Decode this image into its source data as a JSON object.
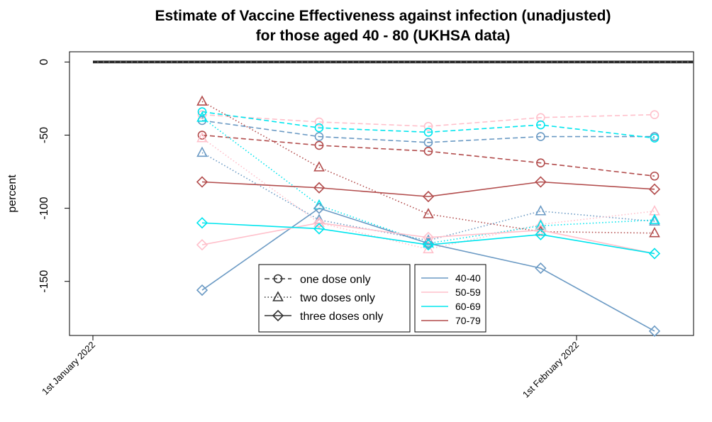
{
  "chart_data": {
    "type": "line",
    "title": "Estimate of Vaccine Effectiveness against infection (unadjusted)",
    "subtitle": "for those aged 40 - 80 (UKHSA data)",
    "ylabel": "percent",
    "xlabel": "",
    "ylim": [
      -187,
      7
    ],
    "yticks": [
      0,
      -50,
      -100,
      -150
    ],
    "x_tick_labels": [
      "1st January 2022",
      "1st February 2022"
    ],
    "x_tick_days": [
      0,
      31
    ],
    "xlim_days": [
      -1.5,
      38.5
    ],
    "x_days": [
      7,
      14.5,
      21.5,
      28.7,
      36
    ],
    "reference_line": {
      "y": 0,
      "x_start_day": 0,
      "x_end_day": 38.5
    },
    "dose_legend": [
      "one dose only",
      "two doses only",
      "three doses only"
    ],
    "age_legend": [
      "40-40",
      "50-59",
      "60-69",
      "70-79"
    ],
    "colors": {
      "40-40": "#6b9ac4",
      "50-59": "#ffc0cb",
      "60-69": "#00e5ee",
      "70-79": "#b24c4c"
    },
    "series": [
      {
        "age": "40-40",
        "dose": "one dose only",
        "values": [
          -40,
          -51,
          -55,
          -51,
          -51
        ]
      },
      {
        "age": "50-59",
        "dose": "one dose only",
        "values": [
          -36,
          -41,
          -44,
          -38,
          -36
        ]
      },
      {
        "age": "60-69",
        "dose": "one dose only",
        "values": [
          -34,
          -45,
          -48,
          -43,
          -52
        ]
      },
      {
        "age": "70-79",
        "dose": "one dose only",
        "values": [
          -50,
          -57,
          -61,
          -69,
          -78
        ]
      },
      {
        "age": "40-40",
        "dose": "two doses only",
        "values": [
          -62,
          -108,
          -122,
          -102,
          -109
        ]
      },
      {
        "age": "50-59",
        "dose": "two doses only",
        "values": [
          -52,
          -110,
          -128,
          -111,
          -102
        ]
      },
      {
        "age": "60-69",
        "dose": "two doses only",
        "values": [
          -38,
          -98,
          -124,
          -112,
          -108
        ]
      },
      {
        "age": "70-79",
        "dose": "two doses only",
        "values": [
          -27,
          -72,
          -104,
          -116,
          -117
        ]
      },
      {
        "age": "40-40",
        "dose": "three doses only",
        "values": [
          -156,
          -100,
          -124,
          -141,
          -184
        ]
      },
      {
        "age": "50-59",
        "dose": "three doses only",
        "values": [
          -125,
          -110,
          -120,
          -115,
          -131
        ]
      },
      {
        "age": "60-69",
        "dose": "three doses only",
        "values": [
          -110,
          -114,
          -125,
          -118,
          -131
        ]
      },
      {
        "age": "70-79",
        "dose": "three doses only",
        "values": [
          -82,
          -86,
          -92,
          -82,
          -87
        ]
      }
    ]
  }
}
